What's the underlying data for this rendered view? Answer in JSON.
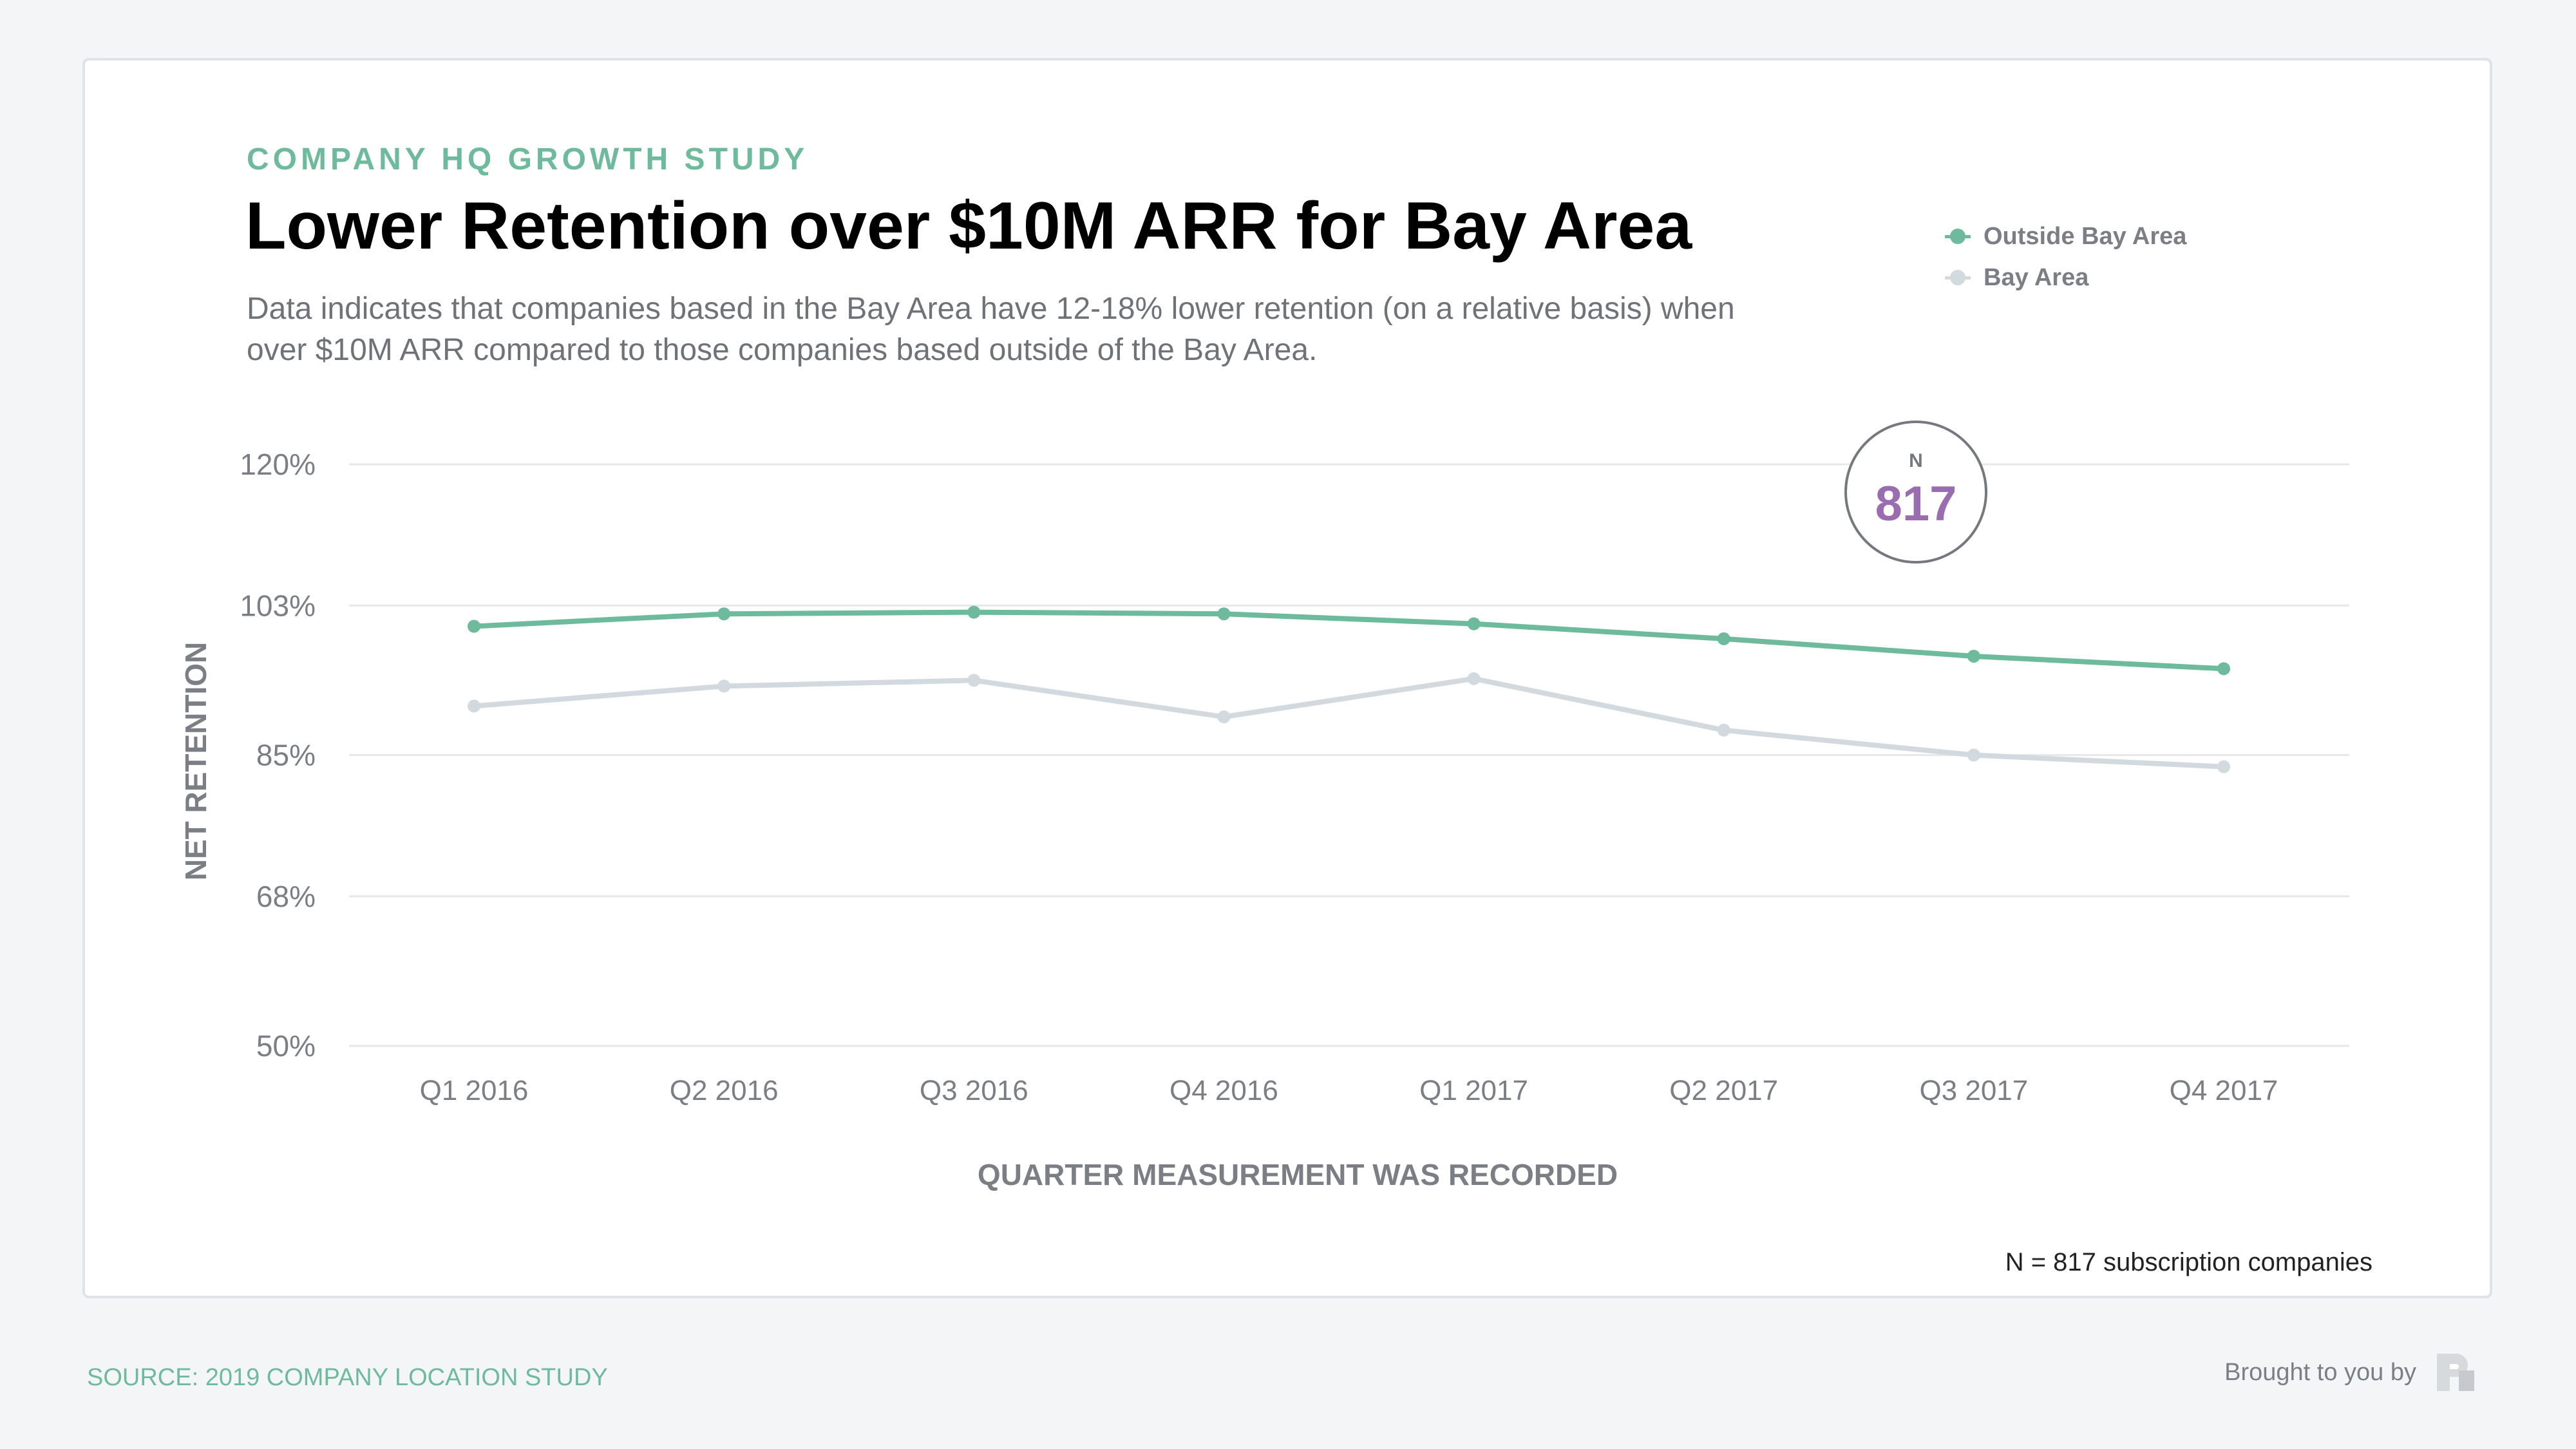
{
  "header": {
    "kicker": "COMPANY HQ GROWTH STUDY",
    "title": "Lower Retention over $10M ARR for Bay Area",
    "subtitle": "Data indicates that companies based in the Bay Area have 12-18% lower retention (on a relative basis) when over $10M ARR compared to those companies based outside of the Bay Area."
  },
  "badge": {
    "label": "N",
    "value": "817"
  },
  "footnote": "N = 817 subscription companies",
  "footer": {
    "source": "SOURCE: 2019 COMPANY LOCATION STUDY",
    "brought_by": "Brought to you by"
  },
  "colors": {
    "outside": "#6dba9c",
    "bay": "#d3dadf",
    "badge_value": "#9a6cb0",
    "grid": "#e6e8ea",
    "axis_text": "#7b7f85"
  },
  "chart_data": {
    "type": "line",
    "xlabel": "QUARTER MEASUREMENT WAS RECORDED",
    "ylabel": "NET RETENTION",
    "categories": [
      "Q1 2016",
      "Q2 2016",
      "Q3 2016",
      "Q4 2016",
      "Q1 2017",
      "Q2 2017",
      "Q3 2017",
      "Q4 2017"
    ],
    "y_ticks": [
      {
        "value": 120,
        "label": "120%"
      },
      {
        "value": 103,
        "label": "103%"
      },
      {
        "value": 85,
        "label": "85%"
      },
      {
        "value": 68,
        "label": "68%"
      },
      {
        "value": 50,
        "label": "50%"
      }
    ],
    "ylim": [
      50,
      120
    ],
    "grid": true,
    "legend_position": "top-right",
    "series": [
      {
        "name": "Outside Bay Area",
        "key": "outside",
        "values": [
          100.5,
          102.0,
          102.2,
          102.0,
          100.8,
          99.0,
          96.9,
          95.4
        ]
      },
      {
        "name": "Bay Area",
        "key": "bay",
        "values": [
          90.9,
          93.3,
          94.0,
          89.6,
          94.2,
          88.0,
          85.0,
          83.6
        ]
      }
    ]
  }
}
